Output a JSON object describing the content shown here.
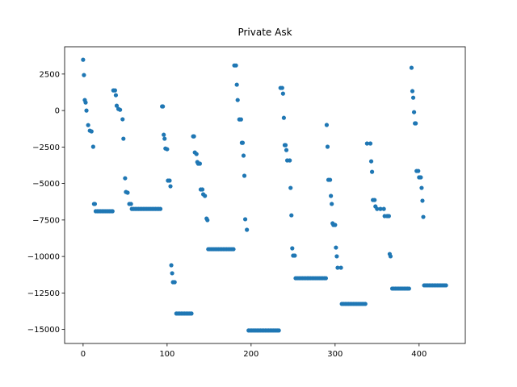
{
  "chart_data": {
    "type": "scatter",
    "title": "Private Ask",
    "color": "#1f77b4",
    "x": [
      0,
      1,
      2,
      3,
      4,
      6,
      8,
      10,
      12,
      13,
      14,
      15,
      17,
      19,
      21,
      23,
      25,
      27,
      29,
      31,
      33,
      35,
      36,
      38,
      39,
      40,
      42,
      44,
      47,
      48,
      50,
      51,
      53,
      55,
      57,
      58,
      60,
      62,
      64,
      66,
      68,
      70,
      72,
      74,
      76,
      78,
      80,
      82,
      84,
      86,
      88,
      90,
      92,
      94,
      95,
      96,
      97,
      98,
      100,
      101,
      103,
      104,
      105,
      106,
      107,
      109,
      111,
      113,
      115,
      117,
      119,
      121,
      123,
      125,
      127,
      129,
      131,
      132,
      133,
      135,
      136,
      137,
      139,
      140,
      142,
      143,
      145,
      147,
      148,
      149,
      151,
      153,
      155,
      157,
      159,
      161,
      163,
      165,
      167,
      169,
      171,
      173,
      175,
      177,
      179,
      180,
      182,
      183,
      184,
      186,
      188,
      189,
      190,
      191,
      192,
      193,
      195,
      197,
      199,
      201,
      203,
      205,
      207,
      209,
      211,
      213,
      215,
      217,
      219,
      221,
      223,
      225,
      227,
      229,
      231,
      233,
      235,
      237,
      238,
      239,
      240,
      241,
      242,
      243,
      246,
      247,
      248,
      249,
      250,
      252,
      253,
      255,
      257,
      259,
      261,
      263,
      265,
      267,
      269,
      271,
      273,
      275,
      277,
      279,
      281,
      283,
      285,
      287,
      289,
      290,
      291,
      292,
      294,
      295,
      296,
      297,
      298,
      300,
      301,
      302,
      303,
      307,
      308,
      310,
      312,
      314,
      316,
      318,
      320,
      322,
      324,
      326,
      328,
      330,
      332,
      334,
      336,
      338,
      342,
      343,
      344,
      345,
      347,
      348,
      350,
      354,
      358,
      359,
      362,
      364,
      365,
      366,
      368,
      370,
      372,
      374,
      376,
      378,
      380,
      382,
      384,
      386,
      388,
      391,
      392,
      393,
      394,
      395,
      396,
      397,
      399,
      400,
      402,
      403,
      404,
      405,
      406,
      408,
      410,
      412,
      414,
      416,
      418,
      420,
      422,
      424,
      426,
      428,
      430,
      432
    ],
    "values": [
      3480,
      2430,
      720,
      550,
      0,
      -1000,
      -1380,
      -1430,
      -2480,
      -6400,
      -6400,
      -6900,
      -6900,
      -6900,
      -6900,
      -6900,
      -6900,
      -6900,
      -6900,
      -6900,
      -6900,
      -6900,
      1380,
      1380,
      1050,
      330,
      110,
      50,
      -600,
      -1930,
      -4640,
      -5580,
      -5630,
      -6400,
      -6400,
      -6740,
      -6740,
      -6740,
      -6740,
      -6740,
      -6740,
      -6740,
      -6740,
      -6740,
      -6740,
      -6740,
      -6740,
      -6740,
      -6740,
      -6740,
      -6740,
      -6740,
      -6740,
      280,
      280,
      -1660,
      -1930,
      -2600,
      -2650,
      -4800,
      -4800,
      -5190,
      -10600,
      -11150,
      -11760,
      -11760,
      -13910,
      -13910,
      -13910,
      -13910,
      -13910,
      -13910,
      -13910,
      -13910,
      -13910,
      -13910,
      -1770,
      -1770,
      -2870,
      -2980,
      -3530,
      -3640,
      -3640,
      -5410,
      -5410,
      -5740,
      -5850,
      -7400,
      -7510,
      -9500,
      -9500,
      -9500,
      -9500,
      -9500,
      -9500,
      -9500,
      -9500,
      -9500,
      -9500,
      -9500,
      -9500,
      -9500,
      -9500,
      -9500,
      -9500,
      3090,
      3090,
      1770,
      720,
      -610,
      -610,
      -2210,
      -2210,
      -3090,
      -4470,
      -7450,
      -8170,
      -15070,
      -15070,
      -15070,
      -15070,
      -15070,
      -15070,
      -15070,
      -15070,
      -15070,
      -15070,
      -15070,
      -15070,
      -15070,
      -15070,
      -15070,
      -15070,
      -15070,
      -15070,
      -15070,
      1550,
      1550,
      1160,
      -500,
      -2370,
      -2370,
      -2710,
      -3420,
      -3420,
      -5300,
      -7180,
      -9440,
      -9940,
      -9940,
      -11490,
      -11490,
      -11490,
      -11490,
      -11490,
      -11490,
      -11490,
      -11490,
      -11490,
      -11490,
      -11490,
      -11490,
      -11490,
      -11490,
      -11490,
      -11490,
      -11490,
      -11490,
      -11490,
      -990,
      -2480,
      -4750,
      -4750,
      -5850,
      -6400,
      -7730,
      -7840,
      -7840,
      -9390,
      -9990,
      -10770,
      -10770,
      -13250,
      -13250,
      -13250,
      -13250,
      -13250,
      -13250,
      -13250,
      -13250,
      -13250,
      -13250,
      -13250,
      -13250,
      -13250,
      -13250,
      -13250,
      -2260,
      -2260,
      -3480,
      -4200,
      -6130,
      -6130,
      -6570,
      -6740,
      -6740,
      -6740,
      -7230,
      -7230,
      -7230,
      -9830,
      -9990,
      -12200,
      -12200,
      -12200,
      -12200,
      -12200,
      -12200,
      -12200,
      -12200,
      -12200,
      -12200,
      -12200,
      2930,
      1330,
      880,
      -110,
      -880,
      -880,
      -4140,
      -4140,
      -4580,
      -4580,
      -5300,
      -6180,
      -7290,
      -11980,
      -11980,
      -11980,
      -11980,
      -11980,
      -11980,
      -11980,
      -11980,
      -11980,
      -11980,
      -11980,
      -11980,
      -11980,
      -11980
    ],
    "xlim": [
      -22,
      455
    ],
    "xticks": [
      0,
      100,
      200,
      300,
      400
    ],
    "ylim": [
      -15960,
      4370
    ],
    "yticks": [
      {
        "value": -15000,
        "label": "−15000"
      },
      {
        "value": -12500,
        "label": "−12500"
      },
      {
        "value": -10000,
        "label": "−10000"
      },
      {
        "value": -7500,
        "label": "−7500"
      },
      {
        "value": -5000,
        "label": "−5000"
      },
      {
        "value": -2500,
        "label": "−2500"
      },
      0,
      2500
    ]
  }
}
